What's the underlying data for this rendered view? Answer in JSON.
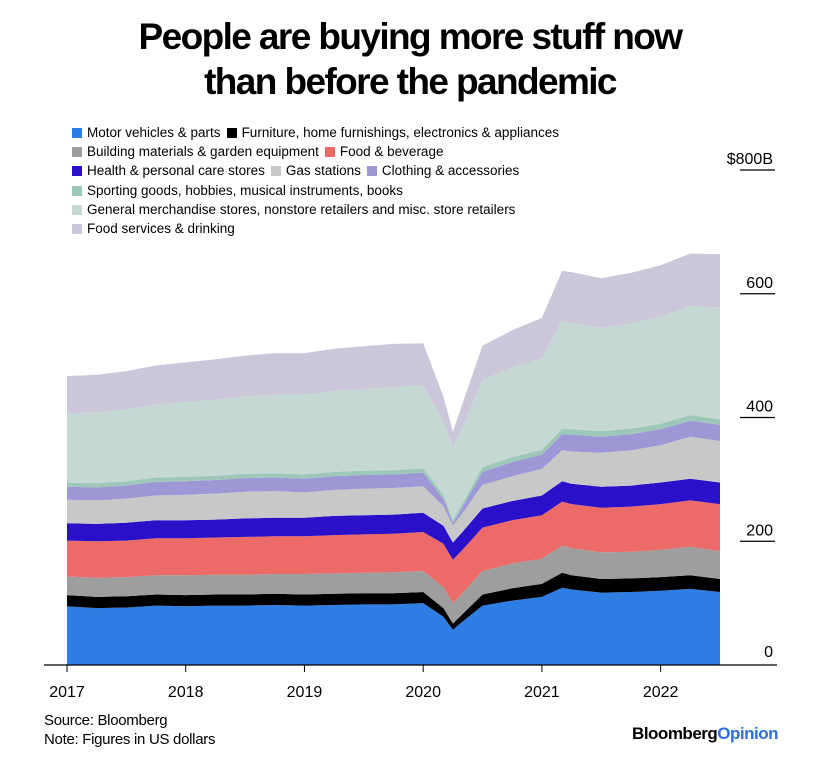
{
  "title_lines": [
    "People are buying more stuff now",
    "than before the pandemic"
  ],
  "source": "Source: Bloomberg",
  "note": "Note: Figures in US dollars",
  "brand": {
    "main": "Bloomberg",
    "accent": "Opinion"
  },
  "chart_data": {
    "type": "area",
    "stacked": true,
    "title": "People are buying more stuff now than before the pandemic",
    "xlabel": "",
    "ylabel": "",
    "x_ticks": [
      "2017",
      "2018",
      "2019",
      "2020",
      "2021",
      "2022"
    ],
    "x_tick_values": [
      2017,
      2018,
      2019,
      2020,
      2021,
      2022
    ],
    "xlim": [
      2017,
      2022.5
    ],
    "y_ticks": [
      "0",
      "200",
      "400",
      "600",
      "$800B"
    ],
    "y_tick_values": [
      0,
      200,
      400,
      600,
      800
    ],
    "ylim": [
      0,
      800
    ],
    "legend_rows": [
      [
        0,
        1
      ],
      [
        2,
        3
      ],
      [
        4,
        5,
        6
      ],
      [
        7
      ],
      [
        8
      ],
      [
        9
      ]
    ],
    "x": [
      2017.0,
      2017.25,
      2017.5,
      2017.75,
      2018.0,
      2018.25,
      2018.5,
      2018.75,
      2019.0,
      2019.25,
      2019.5,
      2019.75,
      2020.0,
      2020.17,
      2020.25,
      2020.33,
      2020.5,
      2020.75,
      2021.0,
      2021.17,
      2021.25,
      2021.5,
      2021.75,
      2022.0,
      2022.25,
      2022.5
    ],
    "series": [
      {
        "name": "Motor vehicles & parts",
        "color": "#2e7ee3",
        "values": [
          95,
          92,
          93,
          96,
          95,
          96,
          96,
          97,
          96,
          97,
          98,
          98,
          100,
          78,
          57,
          70,
          96,
          104,
          110,
          125,
          122,
          117,
          118,
          120,
          123,
          118
        ]
      },
      {
        "name": "Furniture, home furnishings, electronics & appliances",
        "color": "#000000",
        "values": [
          18,
          18,
          18,
          18,
          18,
          18,
          18,
          18,
          18,
          18,
          18,
          18,
          18,
          14,
          10,
          12,
          18,
          20,
          21,
          24,
          23,
          22,
          22,
          22,
          22,
          21
        ]
      },
      {
        "name": "Building materials & garden equipment",
        "color": "#9e9e9e",
        "values": [
          30,
          31,
          31,
          31,
          32,
          32,
          32,
          32,
          33,
          33,
          33,
          34,
          34,
          34,
          33,
          34,
          38,
          40,
          41,
          44,
          44,
          43,
          43,
          44,
          46,
          45
        ]
      },
      {
        "name": "Food & beverage",
        "color": "#ec6a67",
        "values": [
          58,
          59,
          59,
          60,
          60,
          60,
          61,
          61,
          61,
          62,
          62,
          62,
          63,
          70,
          70,
          70,
          70,
          70,
          70,
          71,
          71,
          72,
          73,
          74,
          75,
          76
        ]
      },
      {
        "name": "Health & personal care stores",
        "color": "#2a10c9",
        "values": [
          28,
          28,
          29,
          29,
          29,
          29,
          30,
          30,
          30,
          31,
          31,
          31,
          31,
          29,
          28,
          29,
          31,
          31,
          32,
          33,
          33,
          34,
          34,
          35,
          35,
          35
        ]
      },
      {
        "name": "Gas stations",
        "color": "#c8c8c8",
        "values": [
          38,
          38,
          39,
          40,
          41,
          42,
          43,
          43,
          41,
          42,
          43,
          43,
          43,
          32,
          27,
          30,
          38,
          40,
          43,
          50,
          52,
          55,
          57,
          60,
          68,
          67
        ]
      },
      {
        "name": "Clothing & accessories",
        "color": "#9d97d6",
        "values": [
          21,
          21,
          21,
          22,
          22,
          22,
          22,
          22,
          22,
          22,
          22,
          22,
          22,
          12,
          5,
          10,
          21,
          23,
          23,
          26,
          27,
          26,
          26,
          26,
          26,
          26
        ]
      },
      {
        "name": "Sporting goods, hobbies, musical instruments, books",
        "color": "#9dc7b9",
        "values": [
          7,
          7,
          7,
          7,
          7,
          7,
          7,
          7,
          7,
          7,
          7,
          7,
          7,
          6,
          5,
          6,
          8,
          8,
          8,
          9,
          9,
          9,
          9,
          9,
          9,
          9
        ]
      },
      {
        "name": "General merchandise stores, nonstore retailers and misc. store retailers",
        "color": "#c5d8d3",
        "values": [
          112,
          114,
          116,
          118,
          121,
          123,
          125,
          127,
          129,
          131,
          132,
          134,
          134,
          119,
          117,
          123,
          141,
          145,
          148,
          175,
          172,
          167,
          170,
          173,
          176,
          181
        ]
      },
      {
        "name": "Food services & drinking",
        "color": "#cbc6d9",
        "values": [
          60,
          61,
          62,
          63,
          64,
          65,
          66,
          67,
          67,
          68,
          69,
          70,
          68,
          40,
          25,
          38,
          55,
          60,
          65,
          80,
          82,
          80,
          82,
          83,
          85,
          86
        ]
      }
    ]
  }
}
